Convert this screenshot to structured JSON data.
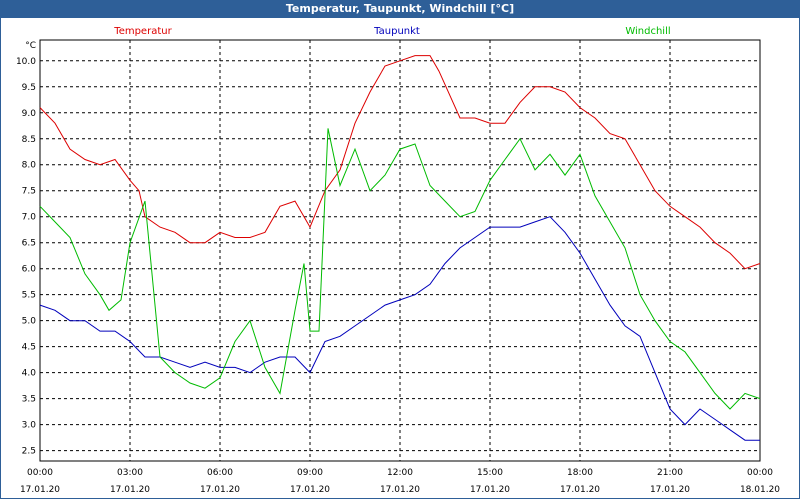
{
  "window": {
    "title": "Temperatur, Taupunkt, Windchill [°C]"
  },
  "chart_data": {
    "type": "line",
    "title": "Temperatur, Taupunkt, Windchill [°C]",
    "y_unit": "°C",
    "ylim": [
      2.3,
      10.4
    ],
    "xlim": [
      0,
      24
    ],
    "grid": true,
    "legend_position": "top",
    "y_ticks": [
      "2.5",
      "3.0",
      "3.5",
      "4.0",
      "4.5",
      "5.0",
      "5.5",
      "6.0",
      "6.5",
      "7.0",
      "7.5",
      "8.0",
      "8.5",
      "9.0",
      "9.5",
      "10.0"
    ],
    "x_ticks": [
      {
        "time": "00:00",
        "date": "17.01.20"
      },
      {
        "time": "03:00",
        "date": "17.01.20"
      },
      {
        "time": "06:00",
        "date": "17.01.20"
      },
      {
        "time": "09:00",
        "date": "17.01.20"
      },
      {
        "time": "12:00",
        "date": "17.01.20"
      },
      {
        "time": "15:00",
        "date": "17.01.20"
      },
      {
        "time": "18:00",
        "date": "17.01.20"
      },
      {
        "time": "21:00",
        "date": "17.01.20"
      },
      {
        "time": "00:00",
        "date": "18.01.20"
      }
    ],
    "series": [
      {
        "name": "Temperatur",
        "color": "#dd0000",
        "x": [
          0,
          0.5,
          1,
          1.5,
          2,
          2.5,
          3,
          3.3,
          3.5,
          4,
          4.5,
          5,
          5.5,
          6,
          6.5,
          7,
          7.5,
          8,
          8.5,
          9,
          9.5,
          10,
          10.5,
          11,
          11.5,
          12,
          12.5,
          13,
          13.3,
          14,
          14.5,
          15,
          15.5,
          16,
          16.5,
          17,
          17.5,
          18,
          18.5,
          19,
          19.5,
          20,
          20.5,
          21,
          21.5,
          22,
          22.5,
          23,
          23.5,
          24
        ],
        "y": [
          9.1,
          8.8,
          8.3,
          8.1,
          8.0,
          8.1,
          7.7,
          7.5,
          7.0,
          6.8,
          6.7,
          6.5,
          6.5,
          6.7,
          6.6,
          6.6,
          6.7,
          7.2,
          7.3,
          6.8,
          7.5,
          7.9,
          8.8,
          9.4,
          9.9,
          10.0,
          10.1,
          10.1,
          9.8,
          8.9,
          8.9,
          8.8,
          8.8,
          9.2,
          9.5,
          9.5,
          9.4,
          9.1,
          8.9,
          8.6,
          8.5,
          8.0,
          7.5,
          7.2,
          7.0,
          6.8,
          6.5,
          6.3,
          6.0,
          6.1
        ]
      },
      {
        "name": "Taupunkt",
        "color": "#0000bb",
        "x": [
          0,
          0.5,
          1,
          1.5,
          2,
          2.5,
          3,
          3.5,
          4,
          4.5,
          5,
          5.5,
          6,
          6.5,
          7,
          7.5,
          8,
          8.5,
          9,
          9.5,
          10,
          10.5,
          11,
          11.5,
          12,
          12.5,
          13,
          13.5,
          14,
          14.5,
          15,
          15.5,
          16,
          16.5,
          17,
          17.5,
          18,
          18.5,
          19,
          19.5,
          20,
          20.5,
          21,
          21.5,
          22,
          22.5,
          23,
          23.5,
          24
        ],
        "y": [
          5.3,
          5.2,
          5.0,
          5.0,
          4.8,
          4.8,
          4.6,
          4.3,
          4.3,
          4.2,
          4.1,
          4.2,
          4.1,
          4.1,
          4.0,
          4.2,
          4.3,
          4.3,
          4.0,
          4.6,
          4.7,
          4.9,
          5.1,
          5.3,
          5.4,
          5.5,
          5.7,
          6.1,
          6.4,
          6.6,
          6.8,
          6.8,
          6.8,
          6.9,
          7.0,
          6.7,
          6.3,
          5.8,
          5.3,
          4.9,
          4.7,
          4.0,
          3.3,
          3.0,
          3.3,
          3.1,
          2.9,
          2.7,
          2.7
        ]
      },
      {
        "name": "Windchill",
        "color": "#00bb00",
        "x": [
          0,
          0.5,
          1,
          1.5,
          2,
          2.3,
          2.7,
          3,
          3.5,
          4,
          4.5,
          5,
          5.5,
          6,
          6.5,
          7,
          7.5,
          8,
          8.5,
          8.8,
          9,
          9.3,
          9.6,
          10,
          10.5,
          11,
          11.5,
          12,
          12.5,
          13,
          13.5,
          14,
          14.5,
          15,
          15.5,
          16,
          16.5,
          17,
          17.5,
          18,
          18.5,
          19,
          19.5,
          20,
          20.5,
          21,
          21.5,
          22,
          22.5,
          23,
          23.5,
          24
        ],
        "y": [
          7.2,
          6.9,
          6.6,
          5.9,
          5.5,
          5.2,
          5.4,
          6.5,
          7.3,
          4.3,
          4.0,
          3.8,
          3.7,
          3.9,
          4.6,
          5.0,
          4.1,
          3.6,
          5.2,
          6.1,
          4.8,
          4.8,
          8.7,
          7.6,
          8.3,
          7.5,
          7.8,
          8.3,
          8.4,
          7.6,
          7.3,
          7.0,
          7.1,
          7.7,
          8.1,
          8.5,
          7.9,
          8.2,
          7.8,
          8.2,
          7.4,
          6.9,
          6.4,
          5.5,
          5.0,
          4.6,
          4.4,
          4.0,
          3.6,
          3.3,
          3.6,
          3.5
        ]
      }
    ]
  }
}
